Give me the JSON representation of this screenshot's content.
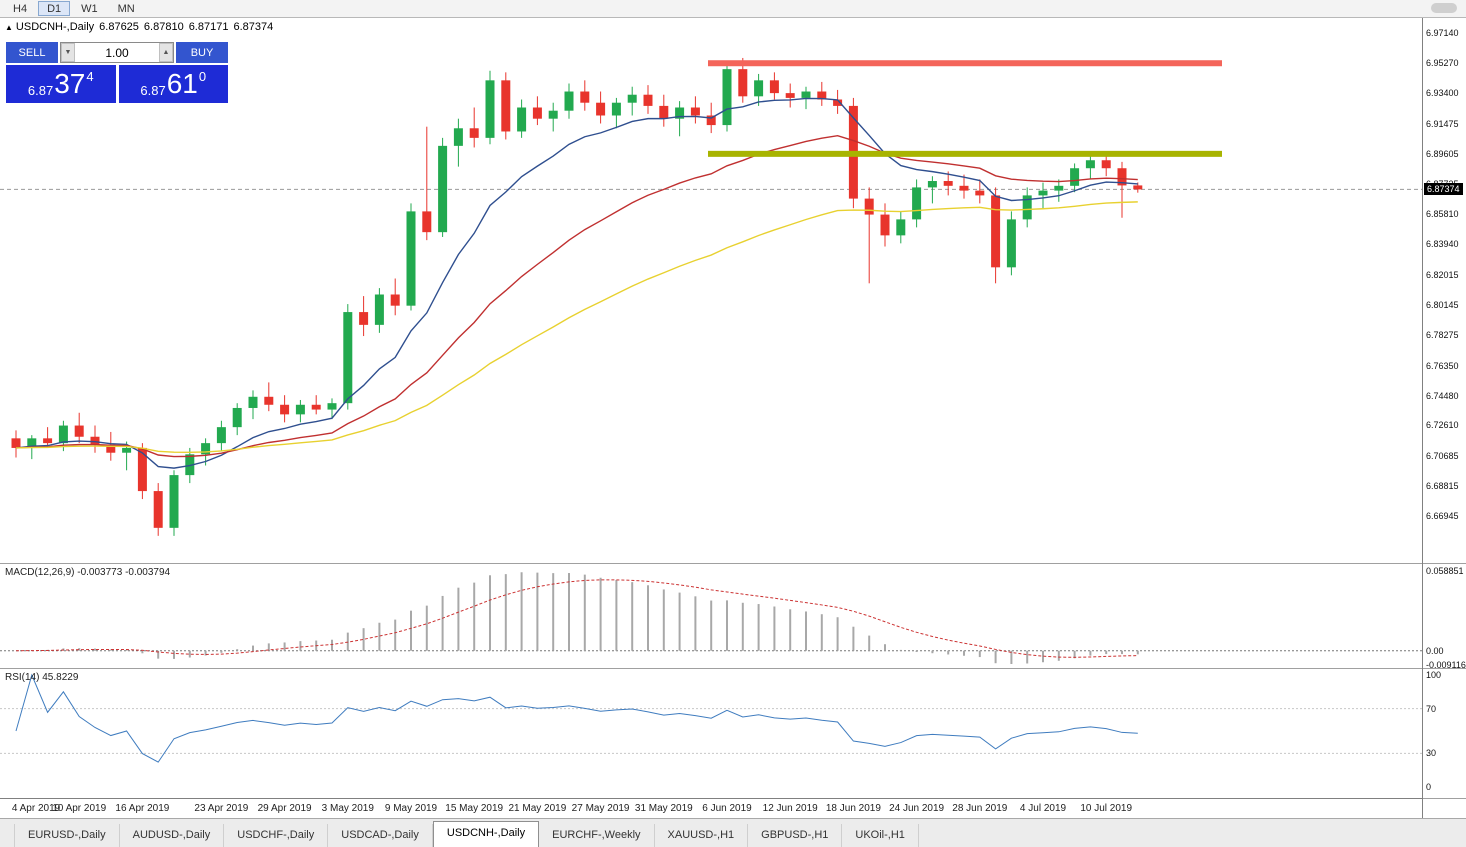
{
  "toolbar": {
    "timeframes": [
      {
        "label": "H4",
        "active": false
      },
      {
        "label": "D1",
        "active": true
      },
      {
        "label": "W1",
        "active": false
      },
      {
        "label": "MN",
        "active": false
      }
    ]
  },
  "chart_header": {
    "collapse_marker": "▲",
    "symbol_period": "USDCNH-,Daily",
    "open": "6.87625",
    "high": "6.87810",
    "low": "6.87171",
    "close": "6.87374"
  },
  "trade_widget": {
    "sell_label": "SELL",
    "buy_label": "BUY",
    "volume": "1.00",
    "down_arrow": "▼",
    "up_arrow": "▲",
    "sell_price": {
      "prefix": "6.87",
      "big": "37",
      "sup": "4"
    },
    "buy_price": {
      "prefix": "6.87",
      "big": "61",
      "sup": "0"
    }
  },
  "indicators": {
    "macd_label": "MACD(12,26,9) -0.003773 -0.003794",
    "rsi_label": "RSI(14) 45.8229"
  },
  "price_axis": {
    "labels": [
      "6.97140",
      "6.95270",
      "6.93400",
      "6.91475",
      "6.89605",
      "6.87735",
      "6.85810",
      "6.83940",
      "6.82015",
      "6.80145",
      "6.78275",
      "6.76350",
      "6.74480",
      "6.72610",
      "6.70685",
      "6.68815",
      "6.66945"
    ],
    "current_price_label": "6.87374",
    "macd_scale": {
      "top": "0.058851",
      "zero": "0.00",
      "bottom": "-0.009116"
    },
    "rsi_scale": [
      "100",
      "70",
      "30",
      "0"
    ]
  },
  "date_axis": {
    "labels": [
      {
        "text": "4 Apr 2019",
        "index": 0
      },
      {
        "text": "10 Apr 2019",
        "index": 4
      },
      {
        "text": "16 Apr 2019",
        "index": 8
      },
      {
        "text": "23 Apr 2019",
        "index": 13
      },
      {
        "text": "29 Apr 2019",
        "index": 17
      },
      {
        "text": "3 May 2019",
        "index": 21
      },
      {
        "text": "9 May 2019",
        "index": 25
      },
      {
        "text": "15 May 2019",
        "index": 29
      },
      {
        "text": "21 May 2019",
        "index": 33
      },
      {
        "text": "27 May 2019",
        "index": 37
      },
      {
        "text": "31 May 2019",
        "index": 41
      },
      {
        "text": "6 Jun 2019",
        "index": 45
      },
      {
        "text": "12 Jun 2019",
        "index": 49
      },
      {
        "text": "18 Jun 2019",
        "index": 53
      },
      {
        "text": "24 Jun 2019",
        "index": 57
      },
      {
        "text": "28 Jun 2019",
        "index": 61
      },
      {
        "text": "4 Jul 2019",
        "index": 65
      },
      {
        "text": "10 Jul 2019",
        "index": 69
      }
    ]
  },
  "tabs": [
    {
      "label": "EURUSD-,Daily",
      "active": false
    },
    {
      "label": "AUDUSD-,Daily",
      "active": false
    },
    {
      "label": "USDCHF-,Daily",
      "active": false
    },
    {
      "label": "USDCAD-,Daily",
      "active": false
    },
    {
      "label": "USDCNH-,Daily",
      "active": true
    },
    {
      "label": "EURCHF-,Weekly",
      "active": false
    },
    {
      "label": "XAUUSD-,H1",
      "active": false
    },
    {
      "label": "GBPUSD-,H1",
      "active": false
    },
    {
      "label": "UKOil-,H1",
      "active": false
    }
  ],
  "colors": {
    "bull": "#22a94f",
    "bear": "#e8342c",
    "ma_fast": "#2f4f8f",
    "ma_medium": "#c03030",
    "ma_slow": "#e8d130",
    "resistance": "#f4655a",
    "support": "#a8b400",
    "macd_hist": "#a8a8a8",
    "macd_signal": "#cc3333",
    "rsi_line": "#3f7cbf",
    "widget_button_blue": "#3355cf",
    "widget_price_blue": "#1e2bd6",
    "current_price_line": "#9a9a9a",
    "badge_bg": "#000000"
  },
  "chart_data": {
    "type": "candlestick",
    "title": "USDCNH-,Daily",
    "symbol": "USDCNH",
    "timeframe": "Daily",
    "y_range": [
      6.64,
      6.981
    ],
    "current_price": 6.87374,
    "levels": {
      "resistance": 6.9527,
      "support": 6.896
    },
    "ma_overlays": [
      {
        "name": "fast-ema",
        "period": 10
      },
      {
        "name": "medium-ema",
        "period": 25
      },
      {
        "name": "slow-ema",
        "period": 50
      }
    ],
    "macd": {
      "fast": 12,
      "slow": 26,
      "signal": 9,
      "range": [
        -0.009116,
        0.058851
      ],
      "current": [
        -0.003773,
        -0.003794
      ]
    },
    "rsi": {
      "period": 14,
      "current": 45.8229,
      "levels": [
        70,
        30
      ],
      "range": [
        0,
        100
      ]
    },
    "candles": [
      [
        6.718,
        6.723,
        6.706,
        6.712
      ],
      [
        6.712,
        6.72,
        6.705,
        6.718
      ],
      [
        6.718,
        6.725,
        6.712,
        6.715
      ],
      [
        6.715,
        6.729,
        6.71,
        6.726
      ],
      [
        6.726,
        6.734,
        6.715,
        6.719
      ],
      [
        6.719,
        6.726,
        6.709,
        6.714
      ],
      [
        6.714,
        6.722,
        6.704,
        6.709
      ],
      [
        6.709,
        6.716,
        6.698,
        6.712
      ],
      [
        6.712,
        6.715,
        6.68,
        6.685
      ],
      [
        6.685,
        6.69,
        6.657,
        6.662
      ],
      [
        6.662,
        6.698,
        6.657,
        6.695
      ],
      [
        6.695,
        6.712,
        6.69,
        6.708
      ],
      [
        6.708,
        6.718,
        6.701,
        6.715
      ],
      [
        6.715,
        6.729,
        6.71,
        6.725
      ],
      [
        6.725,
        6.74,
        6.72,
        6.737
      ],
      [
        6.737,
        6.748,
        6.73,
        6.744
      ],
      [
        6.744,
        6.753,
        6.735,
        6.739
      ],
      [
        6.739,
        6.745,
        6.728,
        6.733
      ],
      [
        6.733,
        6.742,
        6.728,
        6.739
      ],
      [
        6.739,
        6.745,
        6.733,
        6.736
      ],
      [
        6.736,
        6.743,
        6.73,
        6.74
      ],
      [
        6.74,
        6.802,
        6.736,
        6.797
      ],
      [
        6.797,
        6.807,
        6.782,
        6.789
      ],
      [
        6.789,
        6.812,
        6.784,
        6.808
      ],
      [
        6.808,
        6.818,
        6.795,
        6.801
      ],
      [
        6.801,
        6.865,
        6.798,
        6.86
      ],
      [
        6.86,
        6.913,
        6.842,
        6.847
      ],
      [
        6.847,
        6.906,
        6.844,
        6.901
      ],
      [
        6.901,
        6.918,
        6.888,
        6.912
      ],
      [
        6.912,
        6.925,
        6.9,
        6.906
      ],
      [
        6.906,
        6.948,
        6.902,
        6.942
      ],
      [
        6.942,
        6.947,
        6.905,
        6.91
      ],
      [
        6.91,
        6.93,
        6.906,
        6.925
      ],
      [
        6.925,
        6.932,
        6.914,
        6.918
      ],
      [
        6.918,
        6.928,
        6.91,
        6.923
      ],
      [
        6.923,
        6.94,
        6.918,
        6.935
      ],
      [
        6.935,
        6.942,
        6.923,
        6.928
      ],
      [
        6.928,
        6.935,
        6.915,
        6.92
      ],
      [
        6.92,
        6.931,
        6.912,
        6.928
      ],
      [
        6.928,
        6.938,
        6.92,
        6.933
      ],
      [
        6.933,
        6.939,
        6.921,
        6.926
      ],
      [
        6.926,
        6.933,
        6.913,
        6.918
      ],
      [
        6.918,
        6.929,
        6.907,
        6.925
      ],
      [
        6.925,
        6.932,
        6.915,
        6.92
      ],
      [
        6.92,
        6.928,
        6.909,
        6.914
      ],
      [
        6.914,
        6.953,
        6.91,
        6.949
      ],
      [
        6.949,
        6.956,
        6.928,
        6.932
      ],
      [
        6.932,
        6.946,
        6.926,
        6.942
      ],
      [
        6.942,
        6.947,
        6.93,
        6.934
      ],
      [
        6.934,
        6.94,
        6.925,
        6.931
      ],
      [
        6.931,
        6.938,
        6.924,
        6.935
      ],
      [
        6.935,
        6.941,
        6.926,
        6.93
      ],
      [
        6.93,
        6.936,
        6.921,
        6.926
      ],
      [
        6.926,
        6.931,
        6.862,
        6.868
      ],
      [
        6.868,
        6.875,
        6.815,
        6.858
      ],
      [
        6.858,
        6.865,
        6.838,
        6.845
      ],
      [
        6.845,
        6.86,
        6.84,
        6.855
      ],
      [
        6.855,
        6.88,
        6.85,
        6.875
      ],
      [
        6.875,
        6.882,
        6.865,
        6.879
      ],
      [
        6.879,
        6.885,
        6.87,
        6.876
      ],
      [
        6.876,
        6.883,
        6.868,
        6.873
      ],
      [
        6.873,
        6.88,
        6.865,
        6.87
      ],
      [
        6.87,
        6.875,
        6.815,
        6.825
      ],
      [
        6.825,
        6.86,
        6.82,
        6.855
      ],
      [
        6.855,
        6.875,
        6.85,
        6.87
      ],
      [
        6.87,
        6.878,
        6.862,
        6.873
      ],
      [
        6.873,
        6.88,
        6.866,
        6.876
      ],
      [
        6.876,
        6.89,
        6.872,
        6.887
      ],
      [
        6.887,
        6.895,
        6.88,
        6.892
      ],
      [
        6.892,
        6.896,
        6.882,
        6.887
      ],
      [
        6.887,
        6.891,
        6.856,
        6.87625
      ],
      [
        6.87625,
        6.8781,
        6.87171,
        6.87374
      ]
    ]
  }
}
